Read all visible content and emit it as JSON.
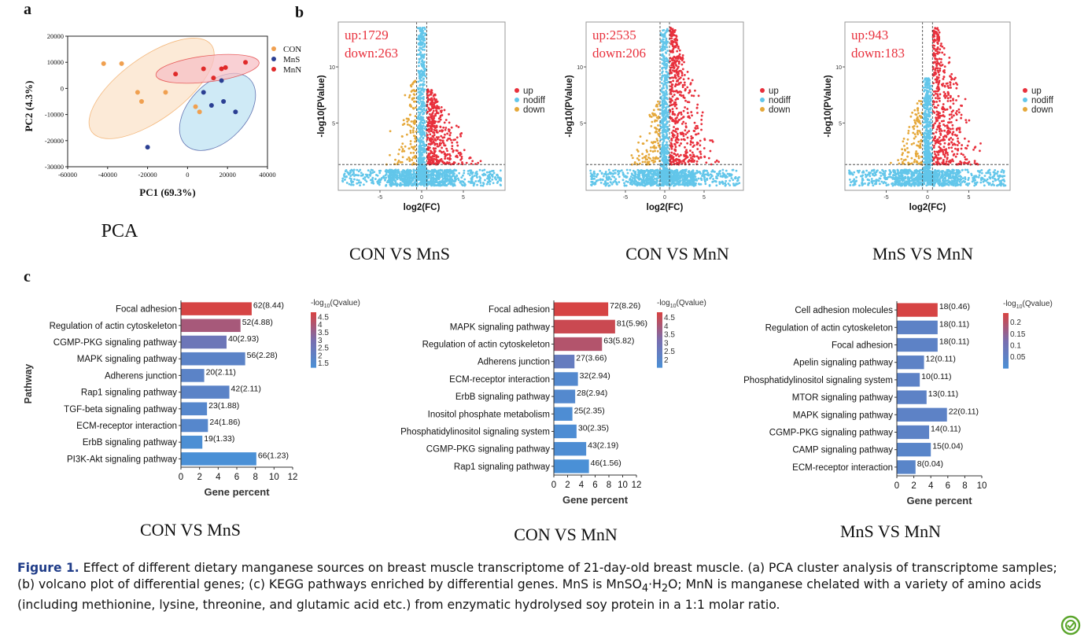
{
  "panel_letters": [
    "a",
    "b",
    "c"
  ],
  "caption": {
    "label": "Figure 1.",
    "text_before_formula": " Effect of different dietary manganese sources on breast muscle transcriptome of 21-day-old breast muscle. (a) PCA cluster analysis of transcriptome samples; (b) volcano plot of differential genes; (c) KEGG pathways enriched by differential genes. MnS is MnSO",
    "formula_sub_4": "4",
    "formula_mid": "·H",
    "formula_sub_2": "2",
    "text_after_formula": "O; MnN is manganese chelated with a variety of amino acids (including methionine, lysine, threonine, and glutamic acid etc.) from enzymatic hydrolysed soy protein in a 1:1 molar ratio."
  },
  "logo_icon": "circular-check-logo-icon",
  "chart_data": [
    {
      "type": "scatter",
      "panel": "a",
      "subtitle": "PCA",
      "xlabel": "PC1 (69.3%)",
      "ylabel": "PC2 (4.3%)",
      "xlim": [
        -60000,
        40000
      ],
      "ylim": [
        -30000,
        20000
      ],
      "xticks": [
        "-60000",
        "-40000",
        "-20000",
        "0",
        "20000",
        "40000"
      ],
      "yticks": [
        "20000",
        "10000",
        "0",
        "-10000",
        "-20000",
        "-30000"
      ],
      "xtick_values": [
        -60000,
        -40000,
        -20000,
        0,
        20000,
        40000
      ],
      "ytick_values": [
        20000,
        10000,
        0,
        -10000,
        -20000,
        -30000
      ],
      "legend_position": "right",
      "series": [
        {
          "name": "CON",
          "color": "#f0a050",
          "ellipse_fill": "#fbe3c9",
          "x": [
            -42000,
            -33000,
            -25000,
            -11000,
            -23000,
            4000,
            6000
          ],
          "y": [
            9500,
            9500,
            -1500,
            -1500,
            -5000,
            -7000,
            -9000
          ],
          "ellipse": {
            "cx": -18000,
            "cy": 0,
            "rx": 37000,
            "ry": 12000,
            "angle": -36
          }
        },
        {
          "name": "MnS",
          "color": "#2b3f93",
          "ellipse_fill": "#bfe3f3",
          "x": [
            -20000,
            8000,
            12000,
            17000,
            18000,
            24000
          ],
          "y": [
            -22500,
            -1500,
            -6500,
            3000,
            -5000,
            -9000
          ],
          "ellipse": {
            "cx": 15000,
            "cy": -9000,
            "rx": 23000,
            "ry": 11000,
            "angle": -46
          }
        },
        {
          "name": "MnN",
          "color": "#e02a2a",
          "ellipse_fill": "#f7c0c6",
          "x": [
            -6000,
            8000,
            17000,
            19000,
            13000,
            29000
          ],
          "y": [
            5500,
            7500,
            7500,
            8000,
            4000,
            10000
          ],
          "ellipse": {
            "cx": 10000,
            "cy": 7500,
            "rx": 26000,
            "ry": 5000,
            "angle": -7
          }
        }
      ]
    },
    {
      "type": "scatter",
      "panel": "b",
      "subtitle": "CON VS MnS",
      "xlabel": "log2(FC)",
      "ylabel": "-log10(PValue)",
      "xlim": [
        -10,
        10
      ],
      "ylim": [
        -1,
        14
      ],
      "xticks": [
        "-5",
        "0",
        "5"
      ],
      "yticks": [
        "5",
        "10"
      ],
      "xtick_values": [
        -5,
        0,
        5
      ],
      "ytick_values": [
        5,
        10
      ],
      "annotation_up": "up:1729",
      "annotation_down": "down:263",
      "threshold_x": [
        -0.6,
        0.6
      ],
      "threshold_y": 1.3,
      "series": [
        {
          "name": "up",
          "color": "#e8303c"
        },
        {
          "name": "nodiff",
          "color": "#62c6ea"
        },
        {
          "name": "down",
          "color": "#e5a83a"
        }
      ],
      "approx_max_y": {
        "up": 8,
        "nodiff": 13.5,
        "down": 9
      },
      "seed": 11
    },
    {
      "type": "scatter",
      "panel": "b",
      "subtitle": "CON VS MnN",
      "xlabel": "log2(FC)",
      "ylabel": "-log10(PValue)",
      "xlim": [
        -10,
        10
      ],
      "ylim": [
        -1,
        14
      ],
      "xticks": [
        "-5",
        "0",
        "5"
      ],
      "yticks": [
        "5",
        "10"
      ],
      "xtick_values": [
        -5,
        0,
        5
      ],
      "ytick_values": [
        5,
        10
      ],
      "annotation_up": "up:2535",
      "annotation_down": "down:206",
      "threshold_x": [
        -0.6,
        0.6
      ],
      "threshold_y": 1.3,
      "series": [
        {
          "name": "up",
          "color": "#e8303c"
        },
        {
          "name": "nodiff",
          "color": "#62c6ea"
        },
        {
          "name": "down",
          "color": "#e5a83a"
        }
      ],
      "approx_max_y": {
        "up": 13.5,
        "nodiff": 13.5,
        "down": 7
      },
      "seed": 29
    },
    {
      "type": "scatter",
      "panel": "b",
      "subtitle": "MnS VS MnN",
      "xlabel": "log2(FC)",
      "ylabel": "-log10(PValue)",
      "xlim": [
        -10,
        10
      ],
      "ylim": [
        -1,
        14
      ],
      "xticks": [
        "-5",
        "0",
        "5"
      ],
      "yticks": [
        "5",
        "10"
      ],
      "xtick_values": [
        -5,
        0,
        5
      ],
      "ytick_values": [
        5,
        10
      ],
      "annotation_up": "up:943",
      "annotation_down": "down:183",
      "threshold_x": [
        -0.6,
        0.6
      ],
      "threshold_y": 1.3,
      "series": [
        {
          "name": "up",
          "color": "#e8303c"
        },
        {
          "name": "nodiff",
          "color": "#62c6ea"
        },
        {
          "name": "down",
          "color": "#e5a83a"
        }
      ],
      "approx_max_y": {
        "up": 13.5,
        "nodiff": 9,
        "down": 7
      },
      "seed": 47
    },
    {
      "type": "bar",
      "panel": "c",
      "orientation": "horizontal",
      "subtitle": "CON VS MnS",
      "xlabel": "Gene percent",
      "ylabel": "Pathway",
      "xlim": [
        0,
        12
      ],
      "xticks": [
        "0",
        "2",
        "4",
        "6",
        "8",
        "10",
        "12"
      ],
      "xtick_values": [
        0,
        2,
        4,
        6,
        8,
        10,
        12
      ],
      "colorbar_title_prefix": "-log",
      "colorbar_title_sub": "10",
      "colorbar_title_suffix": "(Qvalue)",
      "colorbar_ticks": [
        "4.5",
        "4",
        "3.5",
        "3",
        "2.5",
        "2",
        "1.5"
      ],
      "colorbar_range": [
        1.23,
        4.8
      ],
      "categories": [
        "Focal adhesion",
        "Regulation of actin cytoskeleton",
        "CGMP-PKG signaling pathway",
        "MAPK signaling pathway",
        "Adherens junction",
        "Rap1 signaling pathway",
        "TGF-beta signaling pathway",
        "ECM-receptor interaction",
        "ErbB signaling pathway",
        "PI3K-Akt signaling pathway"
      ],
      "values": [
        7.6,
        6.4,
        4.9,
        6.9,
        2.5,
        5.2,
        2.8,
        2.9,
        2.3,
        8.1
      ],
      "color_values": [
        4.8,
        3.9,
        2.6,
        1.9,
        1.9,
        1.9,
        1.7,
        1.7,
        1.3,
        1.23
      ],
      "bar_labels": [
        "62(8.44)",
        "52(4.88)",
        "40(2.93)",
        "56(2.28)",
        "20(2.11)",
        "42(2.11)",
        "23(1.88)",
        "24(1.86)",
        "19(1.33)",
        "66(1.23)"
      ]
    },
    {
      "type": "bar",
      "panel": "c",
      "orientation": "horizontal",
      "subtitle": "CON VS MnN",
      "xlabel": "Gene percent",
      "ylabel": "",
      "xlim": [
        0,
        12
      ],
      "xticks": [
        "0",
        "2",
        "4",
        "6",
        "8",
        "10",
        "12"
      ],
      "xtick_values": [
        0,
        2,
        4,
        6,
        8,
        10,
        12
      ],
      "colorbar_title_prefix": "-log",
      "colorbar_title_sub": "10",
      "colorbar_title_suffix": "(Qvalue)",
      "colorbar_ticks": [
        "4.5",
        "4",
        "3.5",
        "3",
        "2.5",
        "2"
      ],
      "colorbar_range": [
        1.56,
        4.8
      ],
      "categories": [
        "Focal adhesion",
        "MAPK signaling pathway",
        "Regulation of actin cytoskeleton",
        "Adherens junction",
        "ECM-receptor interaction",
        "ErbB signaling pathway",
        "Inositol phosphate metabolism",
        "Phosphatidylinositol signaling system",
        "CGMP-PKG signaling pathway",
        "Rap1 signaling pathway"
      ],
      "values": [
        7.9,
        8.9,
        7.0,
        3.0,
        3.5,
        3.1,
        2.7,
        3.3,
        4.7,
        5.1
      ],
      "color_values": [
        4.8,
        4.6,
        4.2,
        2.5,
        1.9,
        1.9,
        1.7,
        1.7,
        1.7,
        1.56
      ],
      "bar_labels": [
        "72(8.26)",
        "81(5.96)",
        "63(5.82)",
        "27(3.66)",
        "32(2.94)",
        "28(2.94)",
        "25(2.35)",
        "30(2.35)",
        "43(2.19)",
        "46(1.56)"
      ]
    },
    {
      "type": "bar",
      "panel": "c",
      "orientation": "horizontal",
      "subtitle": "MnS VS MnN",
      "xlabel": "Gene percent",
      "ylabel": "",
      "xlim": [
        0,
        10
      ],
      "xticks": [
        "0",
        "2",
        "4",
        "6",
        "8",
        "10"
      ],
      "xtick_values": [
        0,
        2,
        4,
        6,
        8,
        10
      ],
      "colorbar_title_prefix": "-log",
      "colorbar_title_sub": "10",
      "colorbar_title_suffix": "(Qvalue)",
      "colorbar_ticks": [
        "0.2",
        "0.15",
        "0.1",
        "0.05"
      ],
      "colorbar_range": [
        0.0,
        0.24
      ],
      "categories": [
        "Cell adhesion molecules",
        "Regulation of actin cytoskeleton",
        "Focal adhesion",
        "Apelin signaling pathway",
        "Phosphatidylinositol signaling system",
        "MTOR signaling pathway",
        "MAPK signaling pathway",
        "CGMP-PKG signaling pathway",
        "CAMP signaling pathway",
        "ECM-receptor interaction"
      ],
      "values": [
        4.8,
        4.8,
        4.8,
        3.2,
        2.7,
        3.5,
        5.9,
        3.8,
        4.0,
        2.2
      ],
      "color_values": [
        0.24,
        0.05,
        0.05,
        0.05,
        0.05,
        0.05,
        0.05,
        0.05,
        0.04,
        0.04
      ],
      "bar_labels": [
        "18(0.46)",
        "18(0.11)",
        "18(0.11)",
        "12(0.11)",
        "10(0.11)",
        "13(0.11)",
        "22(0.11)",
        "14(0.11)",
        "15(0.04)",
        "8(0.04)"
      ]
    }
  ]
}
